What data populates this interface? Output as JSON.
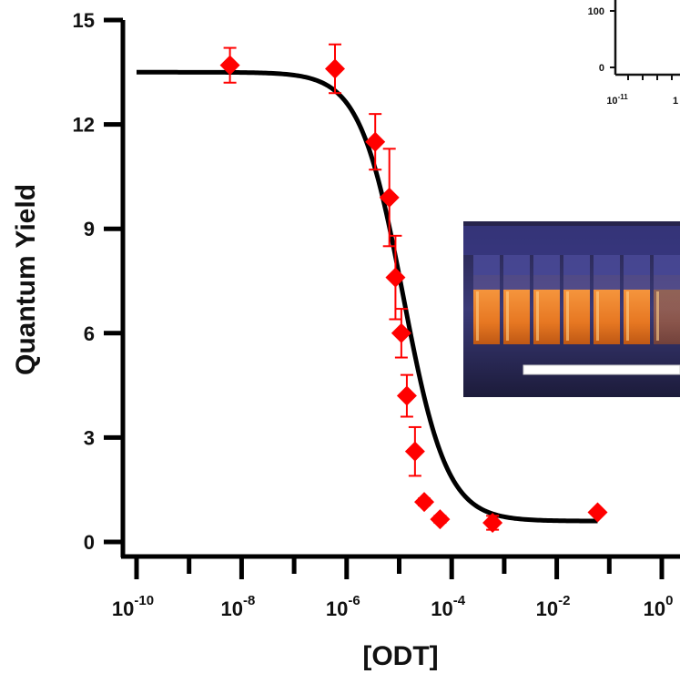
{
  "chart_data": {
    "type": "scatter",
    "xlabel": "[ODT]",
    "ylabel": "Quantum Yield",
    "x_scale": "log",
    "xlim": [
      1e-10,
      1
    ],
    "ylim": [
      0,
      15
    ],
    "y_ticks": [
      "0",
      "3",
      "6",
      "9",
      "12",
      "15"
    ],
    "x_ticks": [
      {
        "base": "10",
        "exp": "-10"
      },
      {
        "base": "10",
        "exp": "-8"
      },
      {
        "base": "10",
        "exp": "-6"
      },
      {
        "base": "10",
        "exp": "-4"
      },
      {
        "base": "10",
        "exp": "-2"
      },
      {
        "base": "10",
        "exp": "0"
      }
    ],
    "marker_color": "#ff0000",
    "fit_color": "#000000",
    "points": [
      {
        "x": 6e-09,
        "y": 13.7,
        "err": 0.5
      },
      {
        "x": 6e-07,
        "y": 13.6,
        "err": 0.7
      },
      {
        "x": 3.5e-06,
        "y": 11.5,
        "err": 0.8
      },
      {
        "x": 6.5e-06,
        "y": 9.9,
        "err": 1.4
      },
      {
        "x": 8.5e-06,
        "y": 7.6,
        "err": 1.2
      },
      {
        "x": 1.1e-05,
        "y": 6.0,
        "err": 0.7
      },
      {
        "x": 1.4e-05,
        "y": 4.2,
        "err": 0.6
      },
      {
        "x": 2e-05,
        "y": 2.6,
        "err": 0.7
      },
      {
        "x": 3e-05,
        "y": 1.15,
        "err": 0.1
      },
      {
        "x": 6e-05,
        "y": 0.65,
        "err": 0.1
      },
      {
        "x": 0.0006,
        "y": 0.55,
        "err": 0.2
      },
      {
        "x": 0.06,
        "y": 0.85,
        "err": 0.0
      }
    ],
    "fit": {
      "top": 13.5,
      "bottom": 0.6,
      "ec50": 1.2e-05,
      "hill": 1.05
    },
    "inset_chart": {
      "y_ticks": [
        "100",
        "0"
      ],
      "x_ticks": [
        {
          "base": "10",
          "exp": "-11"
        },
        {
          "base": "1",
          "exp": ""
        }
      ]
    },
    "inset_photo": {
      "description_color": "#2a2850"
    }
  }
}
